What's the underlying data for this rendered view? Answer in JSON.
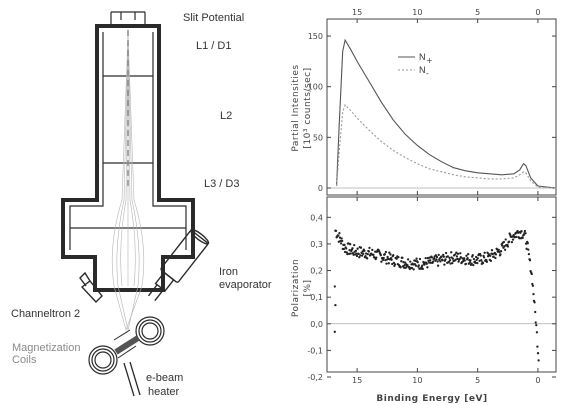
{
  "schematic": {
    "labels": {
      "slit_potential": "Slit Potential",
      "l1_d1": "L1 / D1",
      "l2": "L2",
      "l3_d3": "L3 / D3",
      "iron_evaporator_1": "Iron",
      "iron_evaporator_2": "evaporator",
      "channeltron": "Channeltron 2",
      "magnetization_1": "Magnetization",
      "magnetization_2": "Coils",
      "ebeam_1": "e-beam",
      "ebeam_2": "heater"
    }
  },
  "chart_data": [
    {
      "type": "line",
      "xlabel": "Binding Energy [eV]",
      "ylabel": "Partial Intensities",
      "ylabel2": "[10³ counts/sec]",
      "xlim": [
        17.5,
        -1.5
      ],
      "ylim": [
        0,
        155
      ],
      "x_ticks": [
        "15",
        "10",
        "5",
        "0"
      ],
      "x_tick_values": [
        15,
        10,
        5,
        0
      ],
      "y_ticks": [
        "0",
        "50",
        "100",
        "150"
      ],
      "y_tick_values": [
        0,
        50,
        100,
        150
      ],
      "legend": [
        {
          "label": "N↑"
        },
        {
          "label": "N↓"
        }
      ],
      "legend_main": [
        "N",
        "N"
      ],
      "legend_sub": [
        "+",
        "-"
      ],
      "series": [
        {
          "name": "N+",
          "x": [
            16.7,
            16.5,
            16.2,
            16.0,
            15.5,
            15.0,
            14.0,
            13.0,
            12.0,
            11.0,
            10.0,
            9.0,
            8.0,
            7.0,
            6.0,
            5.0,
            4.0,
            3.0,
            2.0,
            1.5,
            1.2,
            1.0,
            0.6,
            0.0,
            -1.5
          ],
          "y": [
            2,
            60,
            135,
            146,
            136,
            125,
            105,
            85,
            67,
            53,
            42,
            33,
            26,
            20,
            17,
            15,
            14,
            13,
            14,
            18,
            24,
            22,
            10,
            2,
            0
          ]
        },
        {
          "name": "N-",
          "x": [
            16.7,
            16.5,
            16.2,
            16.0,
            15.5,
            15.0,
            14.0,
            13.0,
            12.0,
            11.0,
            10.0,
            9.0,
            8.0,
            7.0,
            6.0,
            5.0,
            4.0,
            3.0,
            2.0,
            1.5,
            1.2,
            1.0,
            0.6,
            0.0,
            -1.5
          ],
          "y": [
            2,
            35,
            75,
            82,
            76,
            69,
            57,
            46,
            37,
            30,
            24,
            19,
            16,
            13,
            11,
            10,
            9,
            9,
            10,
            13,
            16,
            15,
            7,
            1,
            0
          ]
        }
      ]
    },
    {
      "type": "scatter",
      "xlabel": "Binding Energy [eV]",
      "ylabel": "Polarization",
      "ylabel2": "[%]",
      "xlim": [
        17.5,
        -1.5
      ],
      "ylim": [
        -0.2,
        0.42
      ],
      "x_ticks": [
        "15",
        "10",
        "5",
        "0"
      ],
      "x_tick_values": [
        15,
        10,
        5,
        0
      ],
      "y_ticks": [
        "-0,2",
        "-0,1",
        "0,0",
        "0,1",
        "0,2",
        "0,3",
        "0,4"
      ],
      "y_tick_values": [
        -0.2,
        -0.1,
        0.0,
        0.1,
        0.2,
        0.3,
        0.4
      ],
      "zero_line": 0.0,
      "trend": {
        "x": [
          16.8,
          16.0,
          15.0,
          14.0,
          13.0,
          12.0,
          11.0,
          10.0,
          9.0,
          8.0,
          7.0,
          6.0,
          5.0,
          4.0,
          3.0,
          2.5,
          2.0,
          1.5,
          1.2,
          1.0,
          0.8,
          0.5,
          0.3,
          0.1,
          0.0,
          -0.1
        ],
        "y": [
          0.35,
          0.285,
          0.27,
          0.265,
          0.255,
          0.24,
          0.23,
          0.225,
          0.23,
          0.24,
          0.25,
          0.245,
          0.24,
          0.25,
          0.28,
          0.31,
          0.335,
          0.345,
          0.34,
          0.32,
          0.27,
          0.18,
          0.08,
          -0.03,
          -0.1,
          -0.15
        ]
      }
    }
  ]
}
